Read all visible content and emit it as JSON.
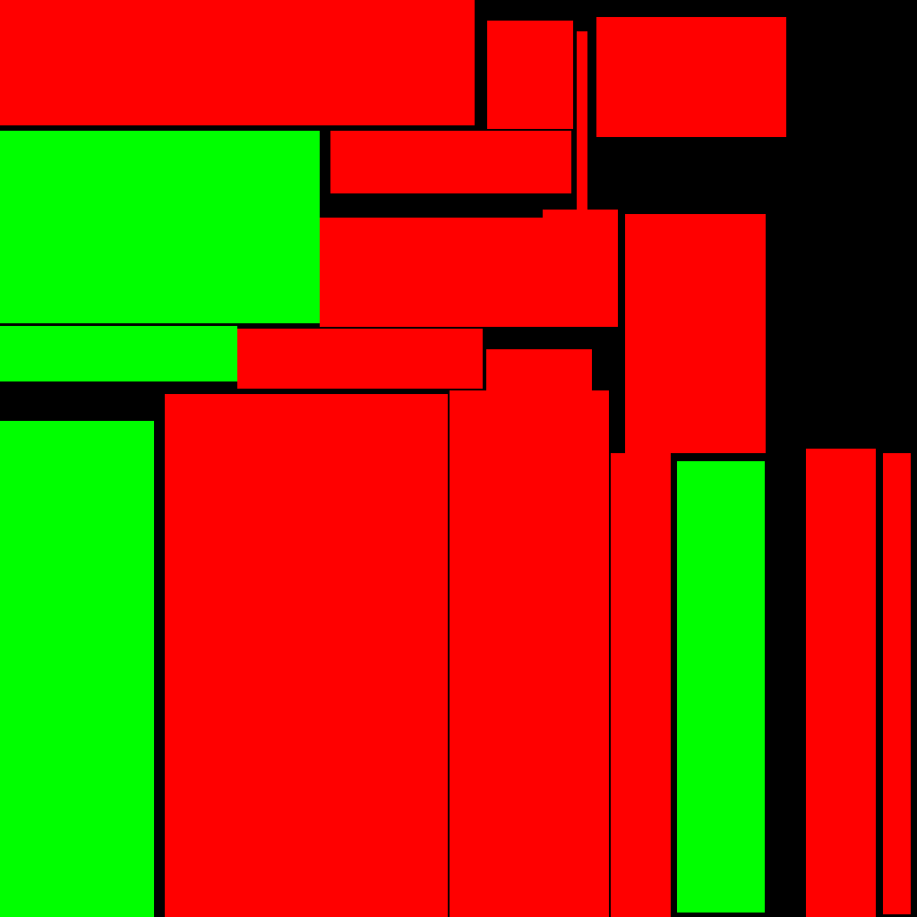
{
  "colors": {
    "background": "#000000",
    "red": "#ff0000",
    "green": "#00ff00"
  }
}
